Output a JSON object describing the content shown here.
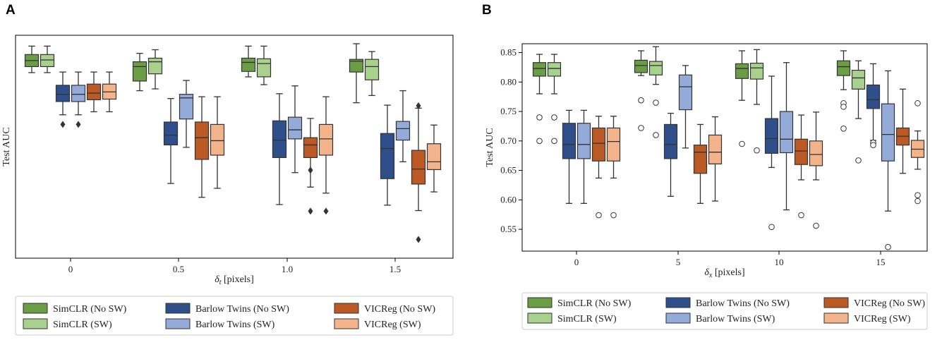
{
  "chart_data": [
    {
      "panel": "A",
      "type": "boxplot",
      "title": "",
      "xlabel": "δt [pixels]",
      "ylabel": "Test AUC",
      "y_ticks_shown": false,
      "ylim": [
        0.5,
        0.87
      ],
      "categories": [
        "0",
        "0.5",
        "1.0",
        "1.5"
      ],
      "legend": {
        "location": "below",
        "entries": [
          "SimCLR (No SW)",
          "Barlow Twins (No SW)",
          "VICReg (No SW)",
          "SimCLR (SW)",
          "Barlow Twins (SW)",
          "VICReg (SW)"
        ]
      },
      "series": [
        {
          "name": "SimCLR (No SW)",
          "color": "#6a9e44",
          "boxes": [
            {
              "whislo": 0.808,
              "q1": 0.818,
              "med": 0.828,
              "q3": 0.838,
              "whishi": 0.852,
              "fliers": []
            },
            {
              "whislo": 0.778,
              "q1": 0.794,
              "med": 0.818,
              "q3": 0.826,
              "whishi": 0.84,
              "fliers": []
            },
            {
              "whislo": 0.801,
              "q1": 0.81,
              "med": 0.825,
              "q3": 0.832,
              "whishi": 0.852,
              "fliers": []
            },
            {
              "whislo": 0.758,
              "q1": 0.809,
              "med": 0.827,
              "q3": 0.83,
              "whishi": 0.856,
              "fliers": []
            }
          ]
        },
        {
          "name": "SimCLR (SW)",
          "color": "#a9d18e",
          "boxes": [
            {
              "whislo": 0.808,
              "q1": 0.818,
              "med": 0.829,
              "q3": 0.838,
              "whishi": 0.852,
              "fliers": []
            },
            {
              "whislo": 0.781,
              "q1": 0.806,
              "med": 0.826,
              "q3": 0.832,
              "whishi": 0.846,
              "fliers": []
            },
            {
              "whislo": 0.788,
              "q1": 0.801,
              "med": 0.823,
              "q3": 0.831,
              "whishi": 0.852,
              "fliers": []
            },
            {
              "whislo": 0.77,
              "q1": 0.796,
              "med": 0.818,
              "q3": 0.83,
              "whishi": 0.843,
              "fliers": []
            }
          ]
        },
        {
          "name": "Barlow Twins (No SW)",
          "color": "#2e4f8a",
          "boxes": [
            {
              "whislo": 0.738,
              "q1": 0.76,
              "med": 0.772,
              "q3": 0.787,
              "whishi": 0.809,
              "fliers": [
                0.722
              ]
            },
            {
              "whislo": 0.624,
              "q1": 0.688,
              "med": 0.704,
              "q3": 0.726,
              "whishi": 0.765,
              "fliers": []
            },
            {
              "whislo": 0.589,
              "q1": 0.667,
              "med": 0.696,
              "q3": 0.728,
              "whishi": 0.773,
              "fliers": []
            },
            {
              "whislo": 0.588,
              "q1": 0.632,
              "med": 0.682,
              "q3": 0.707,
              "whishi": 0.754,
              "fliers": []
            }
          ]
        },
        {
          "name": "Barlow Twins (SW)",
          "color": "#94abd9",
          "boxes": [
            {
              "whislo": 0.738,
              "q1": 0.76,
              "med": 0.772,
              "q3": 0.787,
              "whishi": 0.809,
              "fliers": [
                0.722
              ]
            },
            {
              "whislo": 0.684,
              "q1": 0.731,
              "med": 0.766,
              "q3": 0.772,
              "whishi": 0.795,
              "fliers": []
            },
            {
              "whislo": 0.642,
              "q1": 0.698,
              "med": 0.713,
              "q3": 0.734,
              "whishi": 0.786,
              "fliers": []
            },
            {
              "whislo": 0.66,
              "q1": 0.696,
              "med": 0.715,
              "q3": 0.727,
              "whishi": 0.778,
              "fliers": []
            }
          ]
        },
        {
          "name": "VICReg (No SW)",
          "color": "#bb5a24",
          "boxes": [
            {
              "whislo": 0.743,
              "q1": 0.763,
              "med": 0.774,
              "q3": 0.789,
              "whishi": 0.809,
              "fliers": []
            },
            {
              "whislo": 0.601,
              "q1": 0.664,
              "med": 0.7,
              "q3": 0.726,
              "whishi": 0.768,
              "fliers": []
            },
            {
              "whislo": 0.618,
              "q1": 0.667,
              "med": 0.688,
              "q3": 0.7,
              "whishi": 0.732,
              "fliers": [
                0.646,
                0.578
              ]
            },
            {
              "whislo": 0.579,
              "q1": 0.623,
              "med": 0.648,
              "q3": 0.679,
              "whishi": 0.749,
              "fliers": [
                0.753,
                0.531
              ]
            }
          ]
        },
        {
          "name": "VICReg (SW)",
          "color": "#f3b48c",
          "boxes": [
            {
              "whislo": 0.743,
              "q1": 0.764,
              "med": 0.776,
              "q3": 0.789,
              "whishi": 0.809,
              "fliers": []
            },
            {
              "whislo": 0.616,
              "q1": 0.671,
              "med": 0.695,
              "q3": 0.722,
              "whishi": 0.768,
              "fliers": []
            },
            {
              "whislo": 0.608,
              "q1": 0.671,
              "med": 0.698,
              "q3": 0.722,
              "whishi": 0.768,
              "fliers": [
                0.578
              ]
            },
            {
              "whislo": 0.61,
              "q1": 0.647,
              "med": 0.66,
              "q3": 0.69,
              "whishi": 0.721,
              "fliers": []
            }
          ]
        }
      ]
    },
    {
      "panel": "B",
      "type": "boxplot",
      "title": "",
      "xlabel": "δx [pixels]",
      "ylabel": "Test AUC",
      "y_ticks": [
        "0.55",
        "0.60",
        "0.65",
        "0.70",
        "0.75",
        "0.80",
        "0.85"
      ],
      "ylim": [
        0.513,
        0.865
      ],
      "categories": [
        "0",
        "5",
        "10",
        "15"
      ],
      "legend": {
        "location": "below",
        "entries": [
          "SimCLR (No SW)",
          "Barlow Twins (No SW)",
          "VICReg (No SW)",
          "SimCLR (SW)",
          "Barlow Twins (SW)",
          "VICReg (SW)"
        ]
      },
      "series": [
        {
          "name": "SimCLR (No SW)",
          "color": "#6a9e44",
          "boxes": [
            {
              "whislo": 0.78,
              "q1": 0.81,
              "med": 0.823,
              "q3": 0.833,
              "whishi": 0.847,
              "fliers": [
                0.74,
                0.7
              ]
            },
            {
              "whislo": 0.811,
              "q1": 0.816,
              "med": 0.828,
              "q3": 0.837,
              "whishi": 0.853,
              "fliers": [
                0.769,
                0.722
              ]
            },
            {
              "whislo": 0.769,
              "q1": 0.806,
              "med": 0.823,
              "q3": 0.831,
              "whishi": 0.853,
              "fliers": [
                0.695
              ]
            },
            {
              "whislo": 0.787,
              "q1": 0.811,
              "med": 0.826,
              "q3": 0.836,
              "whishi": 0.853,
              "fliers": [
                0.764,
                0.758,
                0.721
              ]
            }
          ]
        },
        {
          "name": "SimCLR (SW)",
          "color": "#a9d18e",
          "boxes": [
            {
              "whislo": 0.78,
              "q1": 0.81,
              "med": 0.823,
              "q3": 0.833,
              "whishi": 0.847,
              "fliers": [
                0.74,
                0.7
              ]
            },
            {
              "whislo": 0.796,
              "q1": 0.812,
              "med": 0.828,
              "q3": 0.835,
              "whishi": 0.86,
              "fliers": [
                0.765,
                0.71
              ]
            },
            {
              "whislo": 0.762,
              "q1": 0.805,
              "med": 0.824,
              "q3": 0.832,
              "whishi": 0.855,
              "fliers": [
                0.684
              ]
            },
            {
              "whislo": 0.738,
              "q1": 0.788,
              "med": 0.807,
              "q3": 0.82,
              "whishi": 0.836,
              "fliers": [
                0.667
              ]
            }
          ]
        },
        {
          "name": "Barlow Twins (No SW)",
          "color": "#2e4f8a",
          "boxes": [
            {
              "whislo": 0.594,
              "q1": 0.67,
              "med": 0.694,
              "q3": 0.73,
              "whishi": 0.752,
              "fliers": []
            },
            {
              "whislo": 0.606,
              "q1": 0.67,
              "med": 0.694,
              "q3": 0.728,
              "whishi": 0.747,
              "fliers": []
            },
            {
              "whislo": 0.655,
              "q1": 0.679,
              "med": 0.704,
              "q3": 0.738,
              "whishi": 0.81,
              "fliers": [
                0.554
              ]
            },
            {
              "whislo": 0.701,
              "q1": 0.755,
              "med": 0.77,
              "q3": 0.795,
              "whishi": 0.831,
              "fliers": [
                0.697,
                0.693
              ]
            }
          ]
        },
        {
          "name": "Barlow Twins (SW)",
          "color": "#94abd9",
          "boxes": [
            {
              "whislo": 0.594,
              "q1": 0.67,
              "med": 0.694,
              "q3": 0.73,
              "whishi": 0.752,
              "fliers": []
            },
            {
              "whislo": 0.688,
              "q1": 0.753,
              "med": 0.792,
              "q3": 0.812,
              "whishi": 0.828,
              "fliers": []
            },
            {
              "whislo": 0.583,
              "q1": 0.68,
              "med": 0.703,
              "q3": 0.75,
              "whishi": 0.833,
              "fliers": []
            },
            {
              "whislo": 0.581,
              "q1": 0.666,
              "med": 0.711,
              "q3": 0.763,
              "whishi": 0.819,
              "fliers": [
                0.52
              ]
            }
          ]
        },
        {
          "name": "VICReg (No SW)",
          "color": "#bb5a24",
          "boxes": [
            {
              "whislo": 0.637,
              "q1": 0.666,
              "med": 0.696,
              "q3": 0.722,
              "whishi": 0.742,
              "fliers": [
                0.574
              ]
            },
            {
              "whislo": 0.594,
              "q1": 0.645,
              "med": 0.681,
              "q3": 0.693,
              "whishi": 0.728,
              "fliers": []
            },
            {
              "whislo": 0.634,
              "q1": 0.66,
              "med": 0.683,
              "q3": 0.703,
              "whishi": 0.744,
              "fliers": [
                0.574
              ]
            },
            {
              "whislo": 0.645,
              "q1": 0.693,
              "med": 0.708,
              "q3": 0.722,
              "whishi": 0.788,
              "fliers": []
            }
          ]
        },
        {
          "name": "VICReg (SW)",
          "color": "#f3b48c",
          "boxes": [
            {
              "whislo": 0.637,
              "q1": 0.666,
              "med": 0.699,
              "q3": 0.722,
              "whishi": 0.742,
              "fliers": [
                0.574
              ]
            },
            {
              "whislo": 0.598,
              "q1": 0.661,
              "med": 0.681,
              "q3": 0.71,
              "whishi": 0.741,
              "fliers": []
            },
            {
              "whislo": 0.634,
              "q1": 0.658,
              "med": 0.677,
              "q3": 0.7,
              "whishi": 0.749,
              "fliers": [
                0.556
              ]
            },
            {
              "whislo": 0.652,
              "q1": 0.672,
              "med": 0.686,
              "q3": 0.701,
              "whishi": 0.717,
              "fliers": [
                0.764,
                0.608,
                0.598
              ]
            }
          ]
        }
      ]
    }
  ]
}
